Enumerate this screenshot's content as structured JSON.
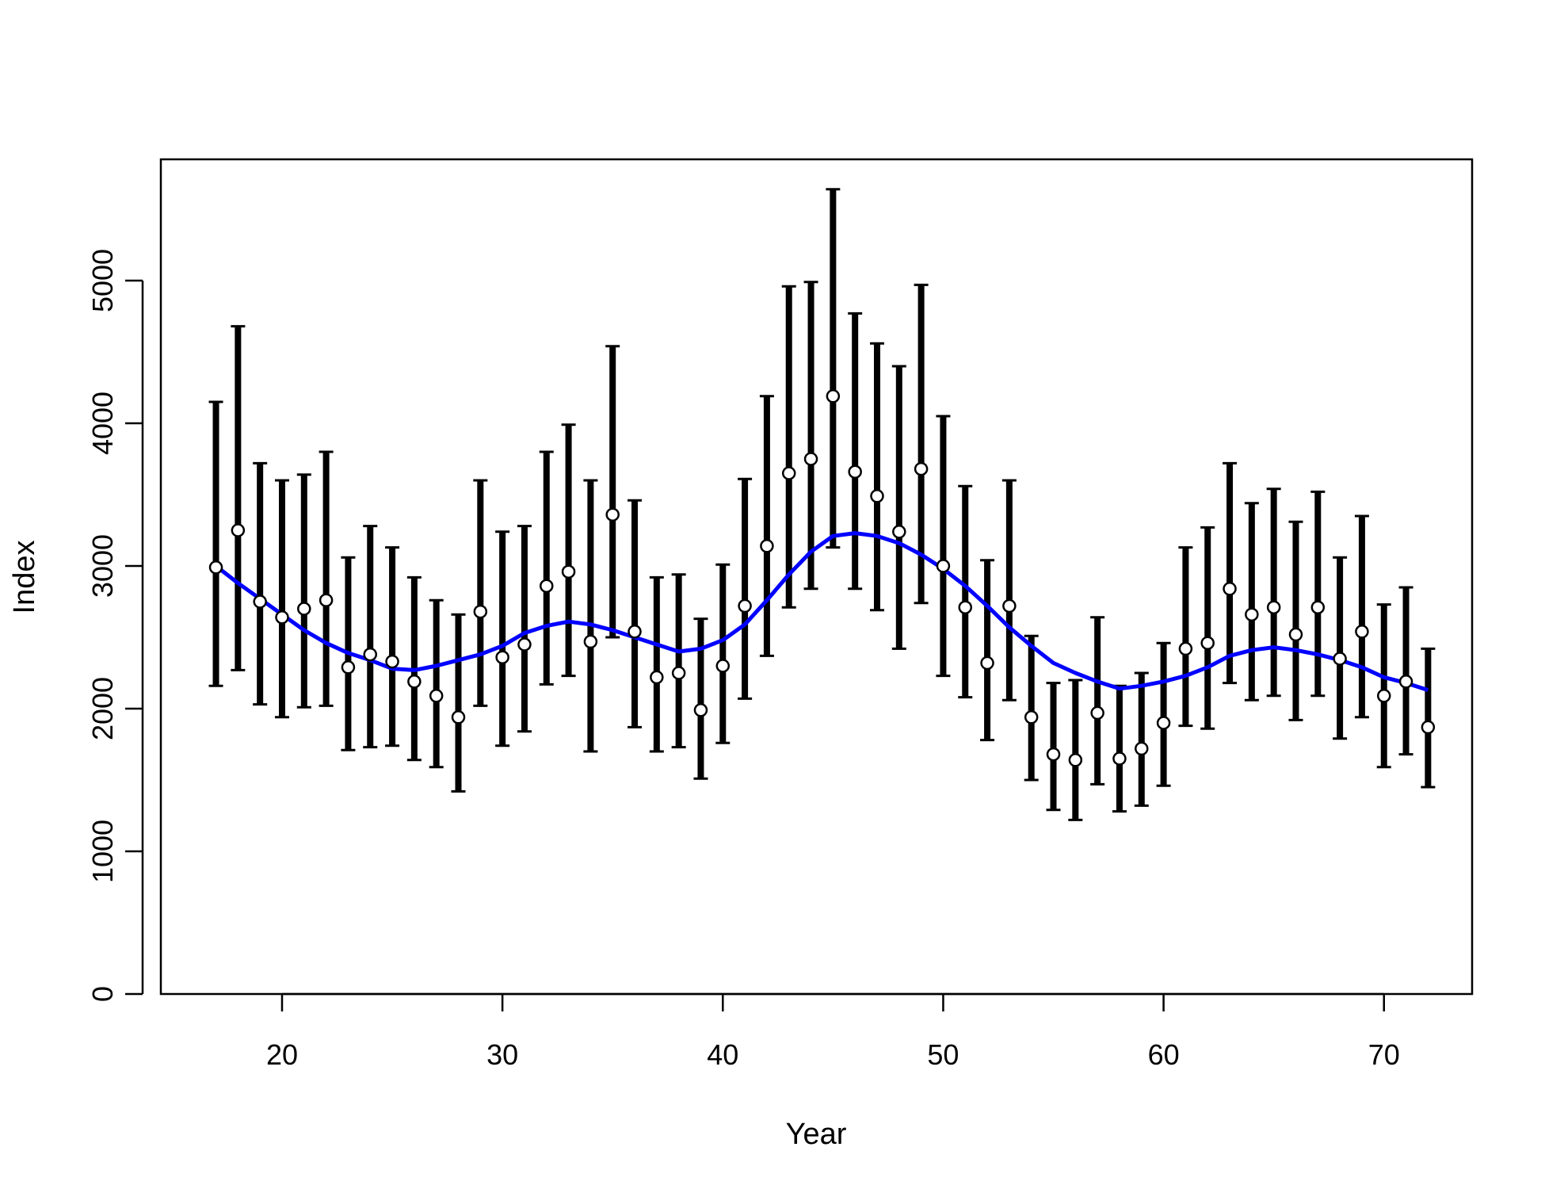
{
  "chart_data": {
    "type": "scatter",
    "title": "",
    "xlabel": "Year",
    "ylabel": "Index",
    "xlim": [
      14.5,
      74
    ],
    "ylim": [
      0,
      5850
    ],
    "xticks": [
      20,
      30,
      40,
      50,
      60,
      70
    ],
    "yticks": [
      0,
      1000,
      2000,
      3000,
      4000,
      5000
    ],
    "grid": false,
    "legend": "none",
    "colors": {
      "points": "#000000",
      "point_fill": "#ffffff",
      "errorbars": "#000000",
      "smooth": "#0000ff"
    },
    "series": [
      {
        "type": "points_with_errorbars",
        "x": [
          17,
          18,
          19,
          20,
          21,
          22,
          23,
          24,
          25,
          26,
          27,
          28,
          29,
          30,
          31,
          32,
          33,
          34,
          35,
          36,
          37,
          38,
          39,
          40,
          41,
          42,
          43,
          44,
          45,
          46,
          47,
          48,
          49,
          50,
          51,
          52,
          53,
          54,
          55,
          56,
          57,
          58,
          59,
          60,
          61,
          62,
          63,
          64,
          65,
          66,
          67,
          68,
          69,
          70,
          71,
          72
        ],
        "y": [
          2990,
          3250,
          2750,
          2640,
          2700,
          2760,
          2290,
          2380,
          2330,
          2190,
          2090,
          1940,
          2680,
          2360,
          2450,
          2860,
          2960,
          2470,
          3360,
          2540,
          2220,
          2250,
          1990,
          2300,
          2720,
          3140,
          3650,
          3750,
          4190,
          3660,
          3490,
          3240,
          3680,
          3000,
          2710,
          2320,
          2720,
          1940,
          1680,
          1640,
          1970,
          1650,
          1720,
          1900,
          2420,
          2460,
          2840,
          2660,
          2710,
          2520,
          2710,
          2350,
          2540,
          2090,
          2190,
          1870
        ],
        "lower": [
          2160,
          2270,
          2030,
          1940,
          2010,
          2020,
          1710,
          1730,
          1740,
          1640,
          1590,
          1420,
          2020,
          1740,
          1840,
          2170,
          2230,
          1700,
          2500,
          1870,
          1700,
          1730,
          1510,
          1760,
          2070,
          2370,
          2710,
          2840,
          3130,
          2840,
          2690,
          2420,
          2740,
          2230,
          2080,
          1780,
          2060,
          1500,
          1290,
          1220,
          1470,
          1280,
          1320,
          1460,
          1880,
          1860,
          2180,
          2060,
          2090,
          1920,
          2090,
          1790,
          1940,
          1590,
          1680,
          1450
        ],
        "upper": [
          4150,
          4680,
          3720,
          3600,
          3640,
          3800,
          3060,
          3280,
          3130,
          2920,
          2760,
          2660,
          3600,
          3240,
          3280,
          3800,
          3990,
          3600,
          4540,
          3460,
          2920,
          2940,
          2630,
          3010,
          3610,
          4190,
          4960,
          4990,
          5640,
          4770,
          4560,
          4400,
          4970,
          4050,
          3560,
          3040,
          3600,
          2510,
          2180,
          2200,
          2640,
          2160,
          2250,
          2460,
          3130,
          3270,
          3720,
          3440,
          3540,
          3310,
          3520,
          3060,
          3350,
          2730,
          2850,
          2420
        ]
      },
      {
        "type": "smooth_line",
        "x": [
          17,
          18,
          19,
          20,
          21,
          22,
          23,
          24,
          25,
          26,
          27,
          28,
          29,
          30,
          31,
          32,
          33,
          34,
          35,
          36,
          37,
          38,
          39,
          40,
          41,
          42,
          43,
          44,
          45,
          46,
          47,
          48,
          49,
          50,
          51,
          52,
          53,
          54,
          55,
          56,
          57,
          58,
          59,
          60,
          61,
          62,
          63,
          64,
          65,
          66,
          67,
          68,
          69,
          70,
          71,
          72
        ],
        "y": [
          3000,
          2880,
          2770,
          2660,
          2550,
          2460,
          2390,
          2340,
          2280,
          2270,
          2300,
          2340,
          2380,
          2440,
          2530,
          2580,
          2610,
          2590,
          2550,
          2500,
          2450,
          2400,
          2420,
          2480,
          2590,
          2760,
          2940,
          3100,
          3210,
          3230,
          3210,
          3160,
          3080,
          2980,
          2860,
          2720,
          2570,
          2440,
          2320,
          2250,
          2190,
          2140,
          2160,
          2190,
          2230,
          2290,
          2370,
          2410,
          2430,
          2410,
          2380,
          2340,
          2290,
          2220,
          2180,
          2130
        ]
      }
    ]
  }
}
